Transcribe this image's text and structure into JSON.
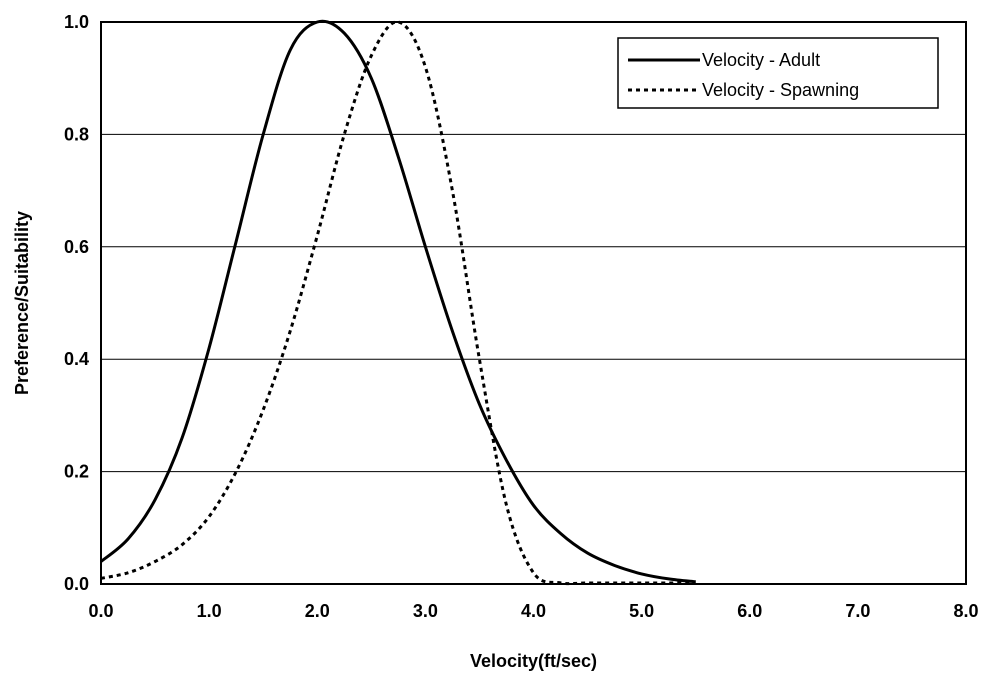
{
  "chart_data": {
    "type": "line",
    "xlabel": "Velocity(ft/sec)",
    "ylabel": "Preference/Suitability",
    "xlim": [
      0,
      8
    ],
    "ylim": [
      0,
      1
    ],
    "x_ticks": [
      "0.0",
      "1.0",
      "2.0",
      "3.0",
      "4.0",
      "5.0",
      "6.0",
      "7.0",
      "8.0"
    ],
    "y_ticks": [
      "0.0",
      "0.2",
      "0.4",
      "0.6",
      "0.8",
      "1.0"
    ],
    "grid": "horizontal",
    "legend_position": "top-right",
    "series": [
      {
        "name": "Velocity - Adult",
        "style": "solid",
        "color": "#000000",
        "x": [
          0.0,
          0.25,
          0.5,
          0.75,
          1.0,
          1.25,
          1.5,
          1.75,
          2.0,
          2.25,
          2.5,
          2.75,
          3.0,
          3.25,
          3.5,
          3.75,
          4.0,
          4.25,
          4.5,
          4.75,
          5.0,
          5.25,
          5.5
        ],
        "y": [
          0.04,
          0.08,
          0.15,
          0.26,
          0.42,
          0.61,
          0.8,
          0.95,
          1.0,
          0.98,
          0.9,
          0.76,
          0.6,
          0.45,
          0.32,
          0.22,
          0.14,
          0.09,
          0.055,
          0.033,
          0.018,
          0.009,
          0.004
        ]
      },
      {
        "name": "Velocity - Spawning",
        "style": "dotted",
        "color": "#000000",
        "x": [
          0.0,
          0.25,
          0.5,
          0.75,
          1.0,
          1.25,
          1.5,
          1.75,
          2.0,
          2.25,
          2.5,
          2.75,
          3.0,
          3.25,
          3.5,
          3.75,
          4.0,
          4.25,
          4.5,
          5.0,
          5.5
        ],
        "y": [
          0.01,
          0.02,
          0.04,
          0.07,
          0.12,
          0.2,
          0.31,
          0.45,
          0.62,
          0.8,
          0.94,
          1.0,
          0.92,
          0.7,
          0.4,
          0.14,
          0.02,
          0.002,
          0.0,
          0.0,
          0.0
        ]
      }
    ]
  }
}
